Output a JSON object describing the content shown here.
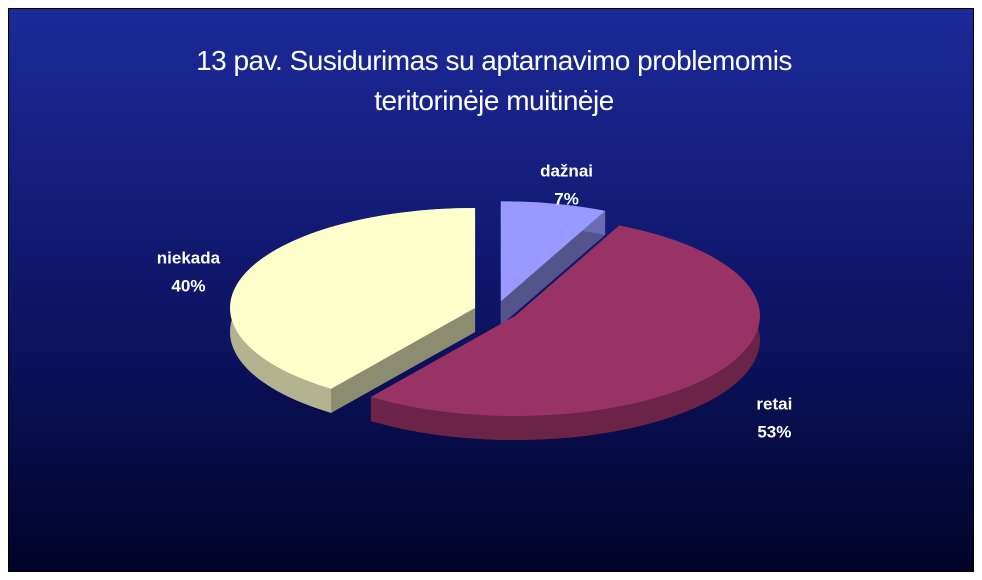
{
  "chart_data": {
    "type": "pie",
    "title": "13 pav. Susidurimas su aptarnavimo problemomis teritorinėje muitinėje",
    "categories": [
      "dažnai",
      "retai",
      "niekada"
    ],
    "values": [
      7,
      53,
      40
    ],
    "value_labels": [
      "7%",
      "53%",
      "40%"
    ],
    "colors": [
      "#9999ff",
      "#993366",
      "#ffffcc"
    ]
  }
}
